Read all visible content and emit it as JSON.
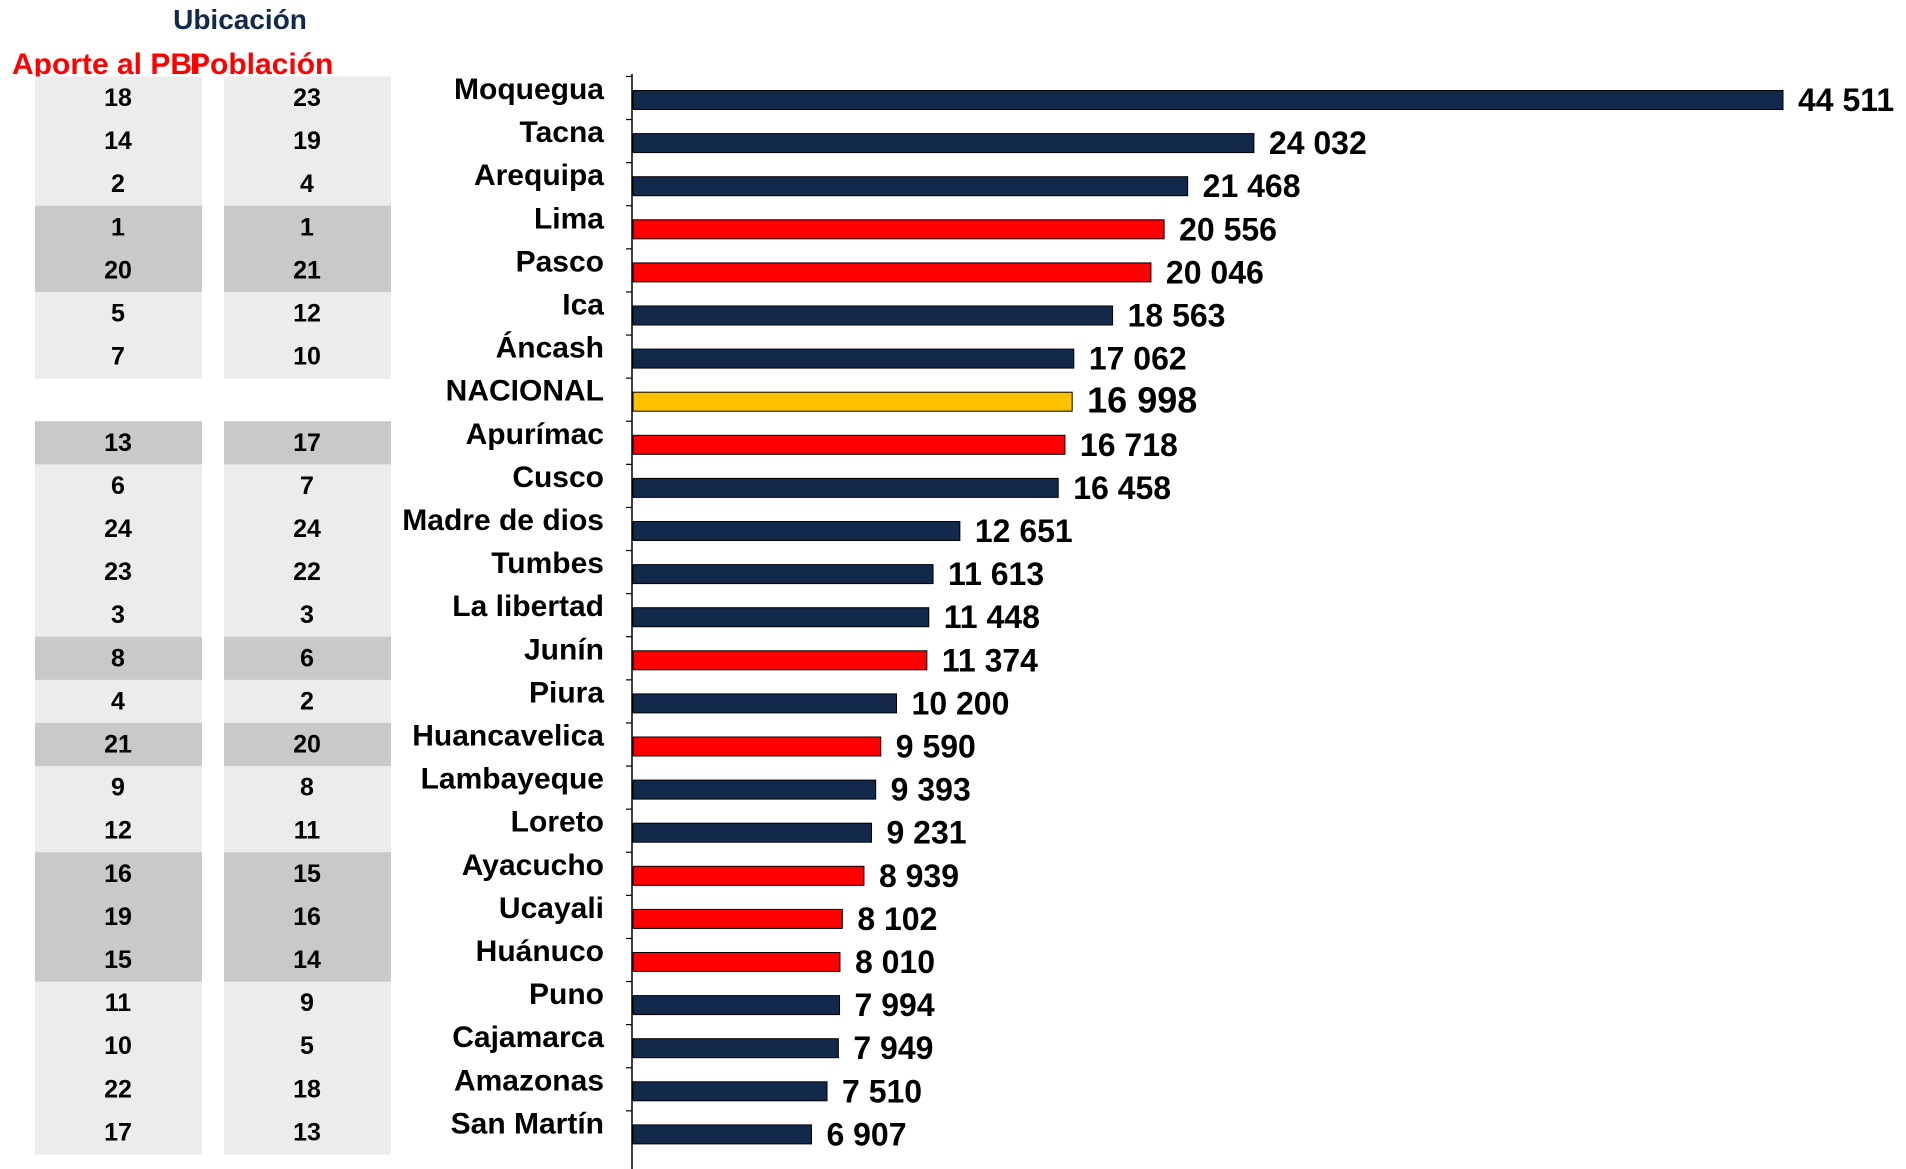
{
  "headers": {
    "ubicacion": "Ubicación",
    "aporte_pbi": "Aporte al PBI",
    "poblacion": "Población"
  },
  "colors": {
    "default": "#13294b",
    "highlight": "#ff0000",
    "national": "#ffc000",
    "text": "#000000",
    "cell_light": "#ececec",
    "cell_dark": "#c9c9c9"
  },
  "chart_data": {
    "type": "bar",
    "orientation": "horizontal",
    "categories": [
      "Moquegua",
      "Tacna",
      "Arequipa",
      "Lima",
      "Pasco",
      "Ica",
      "Áncash",
      "NACIONAL",
      "Apurímac",
      "Cusco",
      "Madre de dios",
      "Tumbes",
      "La libertad",
      "Junín",
      "Piura",
      "Huancavelica",
      "Lambayeque",
      "Loreto",
      "Ayacucho",
      "Ucayali",
      "Huánuco",
      "Puno",
      "Cajamarca",
      "Amazonas",
      "San Martín"
    ],
    "values": [
      44511,
      24032,
      21468,
      20556,
      20046,
      18563,
      17062,
      16998,
      16718,
      16458,
      12651,
      11613,
      11448,
      11374,
      10200,
      9590,
      9393,
      9231,
      8939,
      8102,
      8010,
      7994,
      7949,
      7510,
      6907
    ],
    "value_labels": [
      "44 511",
      "24 032",
      "21 468",
      "20 556",
      "20 046",
      "18 563",
      "17 062",
      "16 998",
      "16 718",
      "16 458",
      "12 651",
      "11 613",
      "11 448",
      "11 374",
      "10 200",
      "9 590",
      "9 393",
      "9 231",
      "8 939",
      "8 102",
      "8 010",
      "7 994",
      "7 949",
      "7 510",
      "6 907"
    ],
    "bar_color_keys": [
      "default",
      "default",
      "default",
      "highlight",
      "highlight",
      "default",
      "default",
      "national",
      "highlight",
      "default",
      "default",
      "default",
      "default",
      "highlight",
      "default",
      "highlight",
      "default",
      "default",
      "highlight",
      "highlight",
      "highlight",
      "default",
      "default",
      "default",
      "default"
    ],
    "rank_pbi": [
      "18",
      "14",
      "2",
      "1",
      "20",
      "5",
      "7",
      "",
      "13",
      "6",
      "24",
      "23",
      "3",
      "8",
      "4",
      "21",
      "9",
      "12",
      "16",
      "19",
      "15",
      "11",
      "10",
      "22",
      "17"
    ],
    "rank_poblacion": [
      "23",
      "19",
      "4",
      "1",
      "21",
      "12",
      "10",
      "",
      "17",
      "7",
      "24",
      "22",
      "3",
      "6",
      "2",
      "20",
      "8",
      "11",
      "15",
      "16",
      "14",
      "9",
      "5",
      "18",
      "13"
    ],
    "rank_cell_shade": [
      "light",
      "light",
      "light",
      "dark",
      "dark",
      "light",
      "light",
      "none",
      "dark",
      "light",
      "light",
      "light",
      "light",
      "dark",
      "light",
      "dark",
      "light",
      "light",
      "dark",
      "dark",
      "dark",
      "light",
      "light",
      "light",
      "light"
    ],
    "xlim": [
      0,
      44511
    ],
    "grid": false,
    "legend": "none"
  }
}
